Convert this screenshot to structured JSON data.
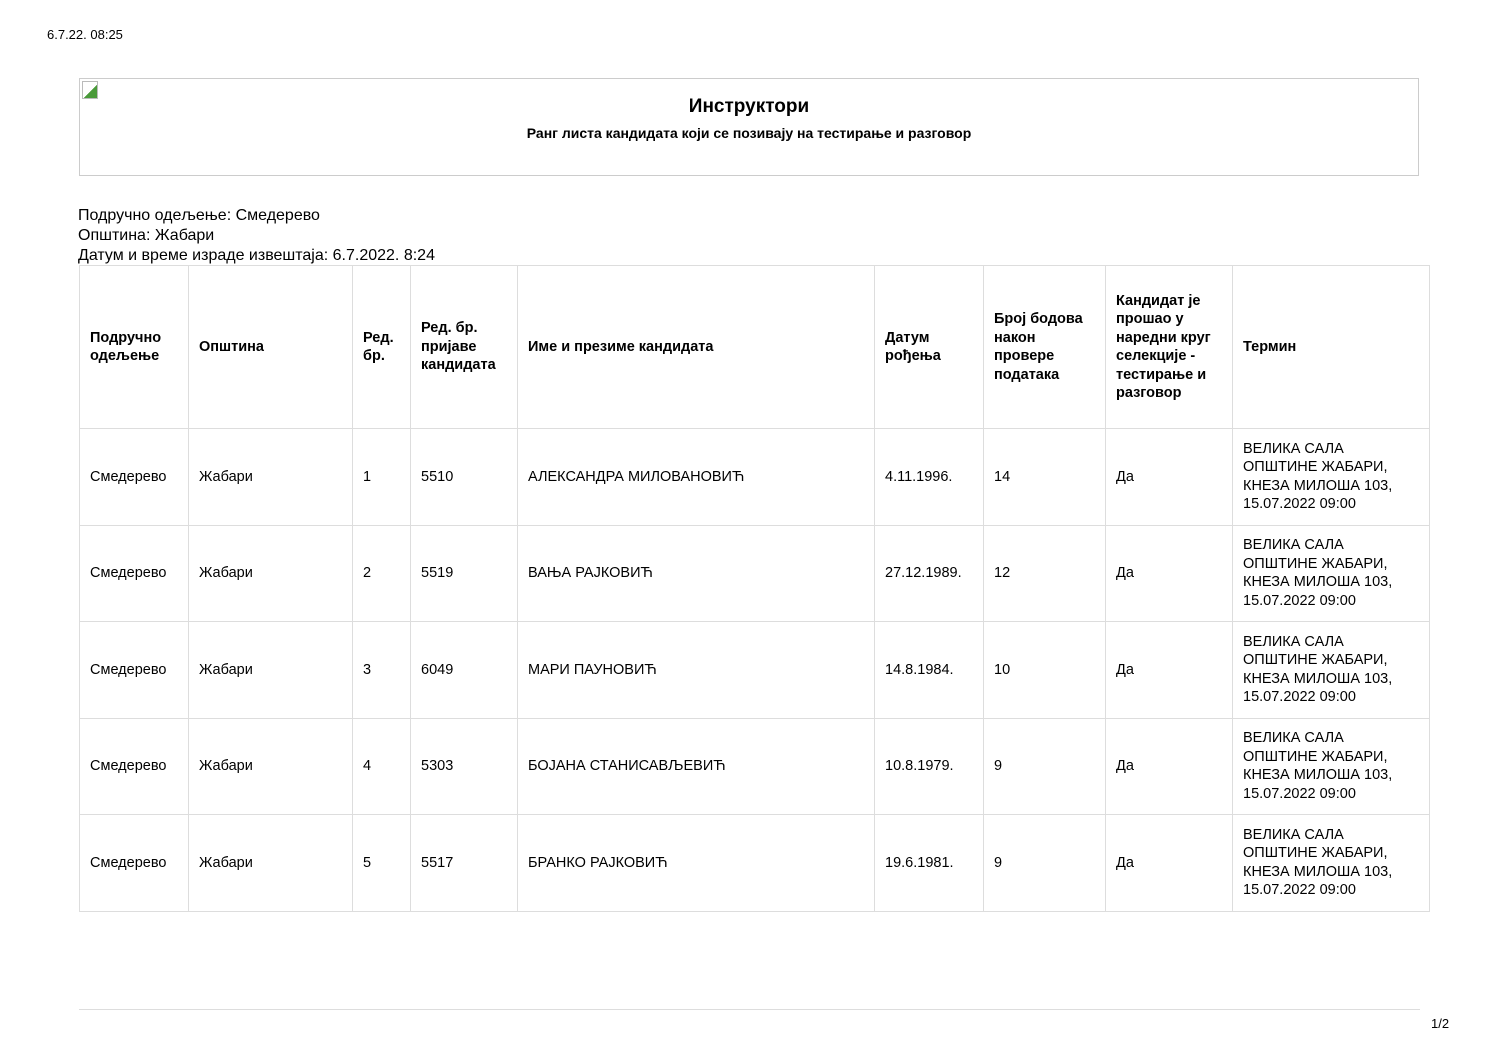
{
  "print_timestamp": "6.7.22. 08:25",
  "header": {
    "logo_icon": "broken-image-icon",
    "title": "Инструктори",
    "subtitle": "Ранг листа кандидата који се позивају на тестирање и разговор"
  },
  "meta": {
    "department": "Подручно одељење: Смедерево",
    "municipality": "Општина: Жабари",
    "report_datetime": "Датум и време израде извештаја: 6.7.2022. 8:24"
  },
  "table": {
    "columns": [
      "Подручно одељење",
      "Општина",
      "Ред. бр.",
      "Ред. бр. пријаве кандидата",
      "Име и презиме кандидата",
      "Датум рођења",
      "Број бодова након провере података",
      "Кандидат је прошао у наредни круг селекције - тестирање и разговор",
      "Термин"
    ],
    "rows": [
      [
        "Смедерево",
        "Жабари",
        "1",
        "5510",
        "АЛЕКСАНДРА МИЛОВАНОВИЋ",
        "4.11.1996.",
        "14",
        "Да",
        "ВЕЛИКА САЛА ОПШТИНЕ ЖАБАРИ, КНЕЗА МИЛОША 103, 15.07.2022 09:00"
      ],
      [
        "Смедерево",
        "Жабари",
        "2",
        "5519",
        "ВАЊА РАЈКОВИЋ",
        "27.12.1989.",
        "12",
        "Да",
        "ВЕЛИКА САЛА ОПШТИНЕ ЖАБАРИ, КНЕЗА МИЛОША 103, 15.07.2022 09:00"
      ],
      [
        "Смедерево",
        "Жабари",
        "3",
        "6049",
        "МАРИ ПАУНОВИЋ",
        "14.8.1984.",
        "10",
        "Да",
        "ВЕЛИКА САЛА ОПШТИНЕ ЖАБАРИ, КНЕЗА МИЛОША 103, 15.07.2022 09:00"
      ],
      [
        "Смедерево",
        "Жабари",
        "4",
        "5303",
        "БОЈАНА СТАНИСАВЉЕВИЋ",
        "10.8.1979.",
        "9",
        "Да",
        "ВЕЛИКА САЛА ОПШТИНЕ ЖАБАРИ, КНЕЗА МИЛОША 103, 15.07.2022 09:00"
      ],
      [
        "Смедерево",
        "Жабари",
        "5",
        "5517",
        "БРАНКО РАЈКОВИЋ",
        "19.6.1981.",
        "9",
        "Да",
        "ВЕЛИКА САЛА ОПШТИНЕ ЖАБАРИ, КНЕЗА МИЛОША 103, 15.07.2022 09:00"
      ]
    ]
  },
  "footer": {
    "page": "1/2"
  }
}
